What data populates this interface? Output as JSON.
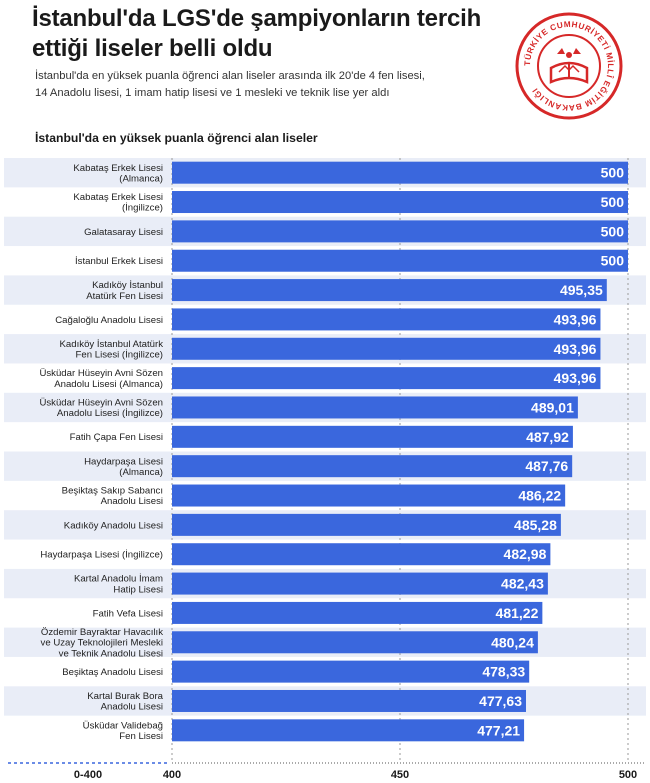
{
  "header": {
    "title_line1": "İstanbul'da LGS'de şampiyonların tercih",
    "title_line2": "ettiği liseler belli oldu",
    "subtitle_line1": "İstanbul'da en yüksek puanla öğrenci alan liseler arasında ilk 20'de 4 fen lisesi,",
    "subtitle_line2": "14 Anadolu lisesi, 1 imam hatip lisesi ve 1 mesleki ve teknik lise yer aldı",
    "chart_heading": "İstanbul'da en yüksek puanla öğrenci alan liseler"
  },
  "logo": {
    "icon": "meb-seal-icon",
    "ring_text": "TÜRKİYE CUMHURİYETİ MİLLÎ EĞİTİM BAKANLIĞI",
    "color": "#d62828"
  },
  "colors": {
    "bar": "#3a67dd",
    "stripe": "#e9edf7",
    "value_text": "#ffffff"
  },
  "chart_data": {
    "type": "bar",
    "orientation": "horizontal",
    "title": "İstanbul'da en yüksek puanla öğrenci alan liseler",
    "categories": [
      [
        "Kabataş Erkek Lisesi",
        "(Almanca)"
      ],
      [
        "Kabataş Erkek Lisesi",
        "(İngilizce)"
      ],
      [
        "Galatasaray Lisesi"
      ],
      [
        "İstanbul Erkek Lisesi"
      ],
      [
        "Kadıköy İstanbul",
        "Atatürk Fen Lisesi"
      ],
      [
        "Cağaloğlu Anadolu Lisesi"
      ],
      [
        "Kadıköy İstanbul Atatürk",
        "Fen Lisesi (İngilizce)"
      ],
      [
        "Üsküdar Hüseyin Avni Sözen",
        "Anadolu Lisesi (Almanca)"
      ],
      [
        "Üsküdar Hüseyin Avni Sözen",
        "Anadolu Lisesi (İngilizce)"
      ],
      [
        "Fatih Çapa Fen Lisesi"
      ],
      [
        "Haydarpaşa Lisesi",
        "(Almanca)"
      ],
      [
        "Beşiktaş Sakıp Sabancı",
        "Anadolu Lisesi"
      ],
      [
        "Kadıköy Anadolu Lisesi"
      ],
      [
        "Haydarpaşa Lisesi (İngilizce)"
      ],
      [
        "Kartal Anadolu İmam",
        "Hatip Lisesi"
      ],
      [
        "Fatih Vefa Lisesi"
      ],
      [
        "Özdemir Bayraktar Havacılık",
        "ve Uzay Teknolojileri Mesleki",
        "ve Teknik Anadolu Lisesi"
      ],
      [
        "Beşiktaş Anadolu Lisesi"
      ],
      [
        "Kartal Burak Bora",
        "Anadolu Lisesi"
      ],
      [
        "Üsküdar Validebağ",
        "Fen Lisesi"
      ]
    ],
    "values": [
      500,
      500,
      500,
      500,
      495.35,
      493.96,
      493.96,
      493.96,
      489.01,
      487.92,
      487.76,
      486.22,
      485.28,
      482.98,
      482.43,
      481.22,
      480.24,
      478.33,
      477.63,
      477.21
    ],
    "value_labels": [
      "500",
      "500",
      "500",
      "500",
      "495,35",
      "493,96",
      "493,96",
      "493,96",
      "489,01",
      "487,92",
      "487,76",
      "486,22",
      "485,28",
      "482,98",
      "482,43",
      "481,22",
      "480,24",
      "478,33",
      "477,63",
      "477,21"
    ],
    "xlim": [
      400,
      500
    ],
    "ticks": [
      {
        "value": 400,
        "label": "400"
      },
      {
        "value": 450,
        "label": "450"
      },
      {
        "value": 500,
        "label": "500"
      }
    ],
    "break_label": "0-400",
    "grid": true
  }
}
